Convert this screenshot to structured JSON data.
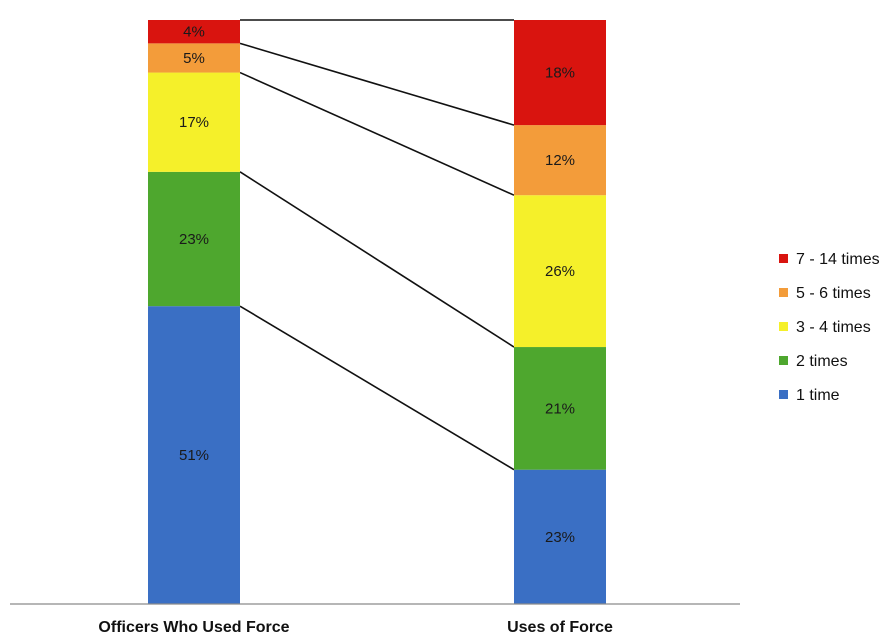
{
  "chart_data": {
    "type": "bar",
    "stacked": true,
    "percent": true,
    "title": "",
    "xlabel": "",
    "ylabel": "",
    "categories": [
      "Officers Who Used Force",
      "Uses of Force"
    ],
    "series": [
      {
        "name": "1 time",
        "color": "#3a6fc4",
        "values": [
          51,
          23
        ],
        "labels": [
          "51%",
          "23%"
        ]
      },
      {
        "name": "2 times",
        "color": "#4ea72e",
        "values": [
          23,
          21
        ],
        "labels": [
          "23%",
          "21%"
        ]
      },
      {
        "name": "3 - 4 times",
        "color": "#f5f02a",
        "values": [
          17,
          26
        ],
        "labels": [
          "17%",
          "26%"
        ]
      },
      {
        "name": "5 - 6 times",
        "color": "#f39c3a",
        "values": [
          5,
          12
        ],
        "labels": [
          "5%",
          "12%"
        ]
      },
      {
        "name": "7 - 14 times",
        "color": "#d9140f",
        "values": [
          4,
          18
        ],
        "labels": [
          "4%",
          "18%"
        ]
      }
    ],
    "connector_lines": true,
    "legend_position": "right",
    "legend_order": [
      "7 - 14 times",
      "5 - 6 times",
      "3 - 4 times",
      "2 times",
      "1 time"
    ],
    "grid": false,
    "ylim": [
      0,
      100
    ]
  }
}
